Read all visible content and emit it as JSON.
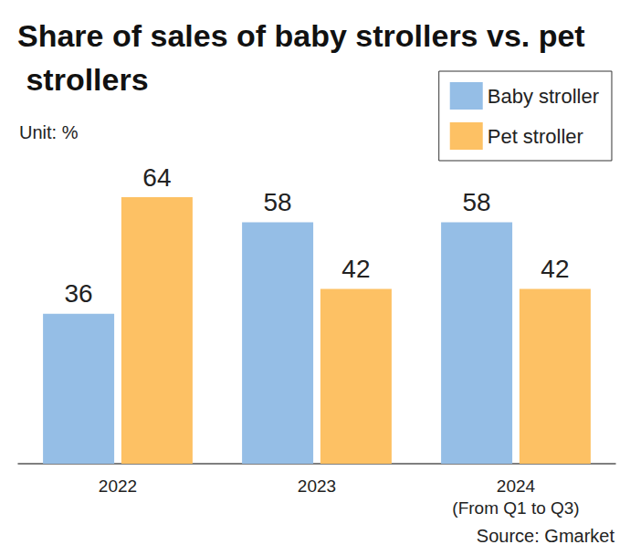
{
  "chart_data": {
    "type": "bar",
    "title": "Share of sales of baby strollers vs. pet strollers",
    "subtitle": "Unit: %",
    "source": "Source: Gmarket",
    "categories": [
      "2022",
      "2023",
      "2024\n(From Q1 to Q3)"
    ],
    "series": [
      {
        "name": "Baby stroller",
        "color": "#95bee6",
        "values": [
          36,
          58,
          58
        ]
      },
      {
        "name": "Pet stroller",
        "color": "#fdc164",
        "values": [
          64,
          42,
          42
        ]
      }
    ],
    "ylim": [
      0,
      64
    ],
    "grid": false,
    "legend": "top-right",
    "data_labels": true,
    "tick_labels": "x"
  }
}
